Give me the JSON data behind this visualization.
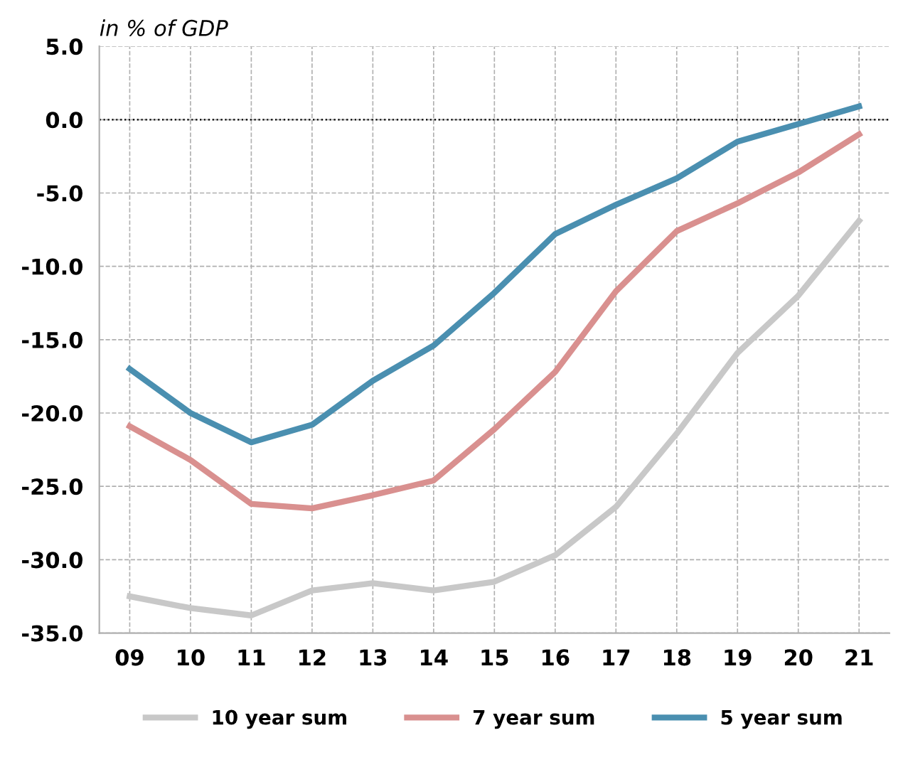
{
  "chart_data": {
    "type": "line",
    "ylabel": "in % of GDP",
    "categories": [
      "09",
      "10",
      "11",
      "12",
      "13",
      "14",
      "15",
      "16",
      "17",
      "18",
      "19",
      "20",
      "21"
    ],
    "series": [
      {
        "name": "10 year sum",
        "color": "#c8c8c8",
        "values": [
          -32.5,
          -33.3,
          -33.8,
          -32.1,
          -31.6,
          -32.1,
          -31.5,
          -29.7,
          -26.4,
          -21.4,
          -15.9,
          -12.0,
          -6.9
        ]
      },
      {
        "name": "7 year sum",
        "color": "#d9908f",
        "values": [
          -20.9,
          -23.2,
          -26.2,
          -26.5,
          -25.6,
          -24.6,
          -21.1,
          -17.2,
          -11.7,
          -7.6,
          -5.7,
          -3.6,
          -1.0
        ]
      },
      {
        "name": "5 year sum",
        "color": "#4a8fb0",
        "values": [
          -17.0,
          -20.0,
          -22.0,
          -20.8,
          -17.8,
          -15.4,
          -11.8,
          -7.8,
          -5.8,
          -4.0,
          -1.5,
          -0.3,
          0.9
        ]
      }
    ],
    "ylim": [
      -35,
      5
    ],
    "yticks": [
      {
        "value": 5,
        "label": "5.0"
      },
      {
        "value": 0,
        "label": "0.0"
      },
      {
        "value": -5,
        "label": "-5.0"
      },
      {
        "value": -10,
        "label": "-10.0"
      },
      {
        "value": -15,
        "label": "-15.0"
      },
      {
        "value": -20,
        "label": "-20.0"
      },
      {
        "value": -25,
        "label": "-25.0"
      },
      {
        "value": -30,
        "label": "-30.0"
      },
      {
        "value": -35,
        "label": "-35.0"
      }
    ],
    "ref_lines": [
      {
        "axis": "y",
        "value": 0,
        "color": "#000000",
        "line_style": "dotted"
      }
    ],
    "grid": true,
    "legend": "bottom",
    "line_style": "solid"
  }
}
